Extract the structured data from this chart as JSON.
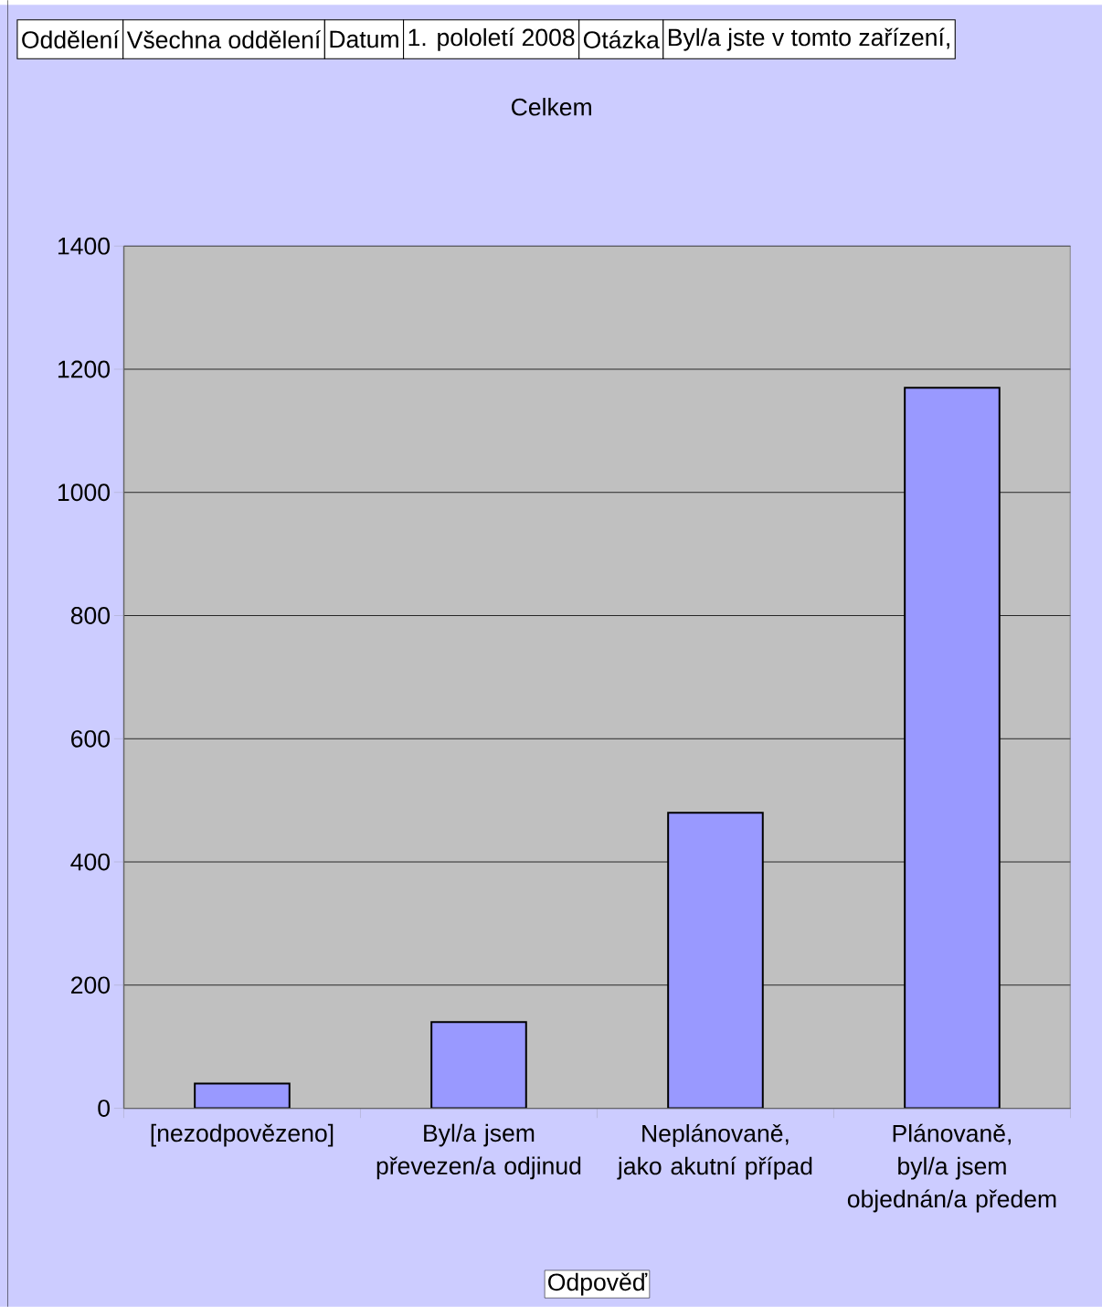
{
  "chart_data": {
    "type": "bar",
    "title": "Celkem",
    "xlabel": "Odpověď",
    "annotations": [
      "Oddělení",
      "Všechna oddělení",
      "Datum",
      "1. pololetí 2008",
      "Otázka",
      "Byl/a jste v tomto zařízení,"
    ],
    "categories": [
      "[nezodpovězeno]",
      "Byl/a jsem převezen/a odjinud",
      "Neplánovaně, jako akutní případ",
      "Plánovaně, byl/a jsem objednán/a předem"
    ],
    "values": [
      40,
      140,
      480,
      1170
    ],
    "color": "#9999ff",
    "ylim": [
      0,
      1400
    ],
    "yticks": [
      0,
      200,
      400,
      600,
      800,
      1000,
      1200,
      1400
    ],
    "grid": "y"
  }
}
